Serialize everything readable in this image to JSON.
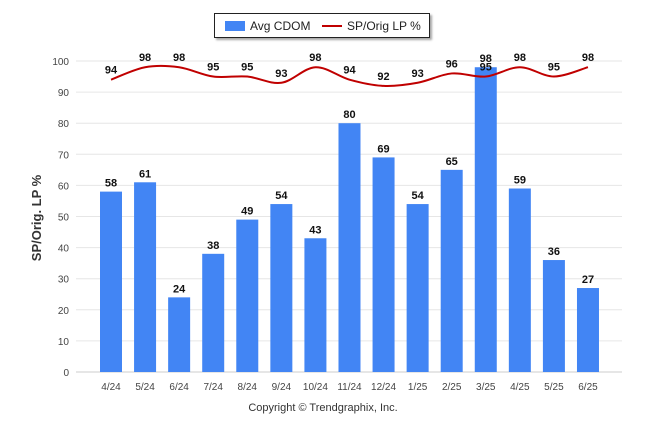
{
  "chart_data": {
    "type": "bar",
    "categories": [
      "4/24",
      "5/24",
      "6/24",
      "7/24",
      "8/24",
      "9/24",
      "10/24",
      "11/24",
      "12/24",
      "1/25",
      "2/25",
      "3/25",
      "4/25",
      "5/25",
      "6/25"
    ],
    "series": [
      {
        "name": "Avg CDOM",
        "type": "bar",
        "values": [
          58,
          61,
          24,
          38,
          49,
          54,
          43,
          80,
          69,
          54,
          65,
          98,
          59,
          36,
          27
        ]
      },
      {
        "name": "SP/Orig LP %",
        "type": "line",
        "values": [
          94,
          98,
          98,
          95,
          95,
          93,
          98,
          94,
          92,
          93,
          96,
          95,
          98,
          95,
          98
        ]
      }
    ],
    "ylabel": "SP/Orig. LP %",
    "ylim": [
      0,
      100
    ],
    "yticks": [
      0,
      10,
      20,
      30,
      40,
      50,
      60,
      70,
      80,
      90,
      100
    ],
    "grid": true,
    "legend_position": "top-center",
    "colors": {
      "bar": "#4285f4",
      "line": "#c00000"
    }
  },
  "footer": {
    "copyright": "Copyright © Trendgraphix, Inc."
  }
}
